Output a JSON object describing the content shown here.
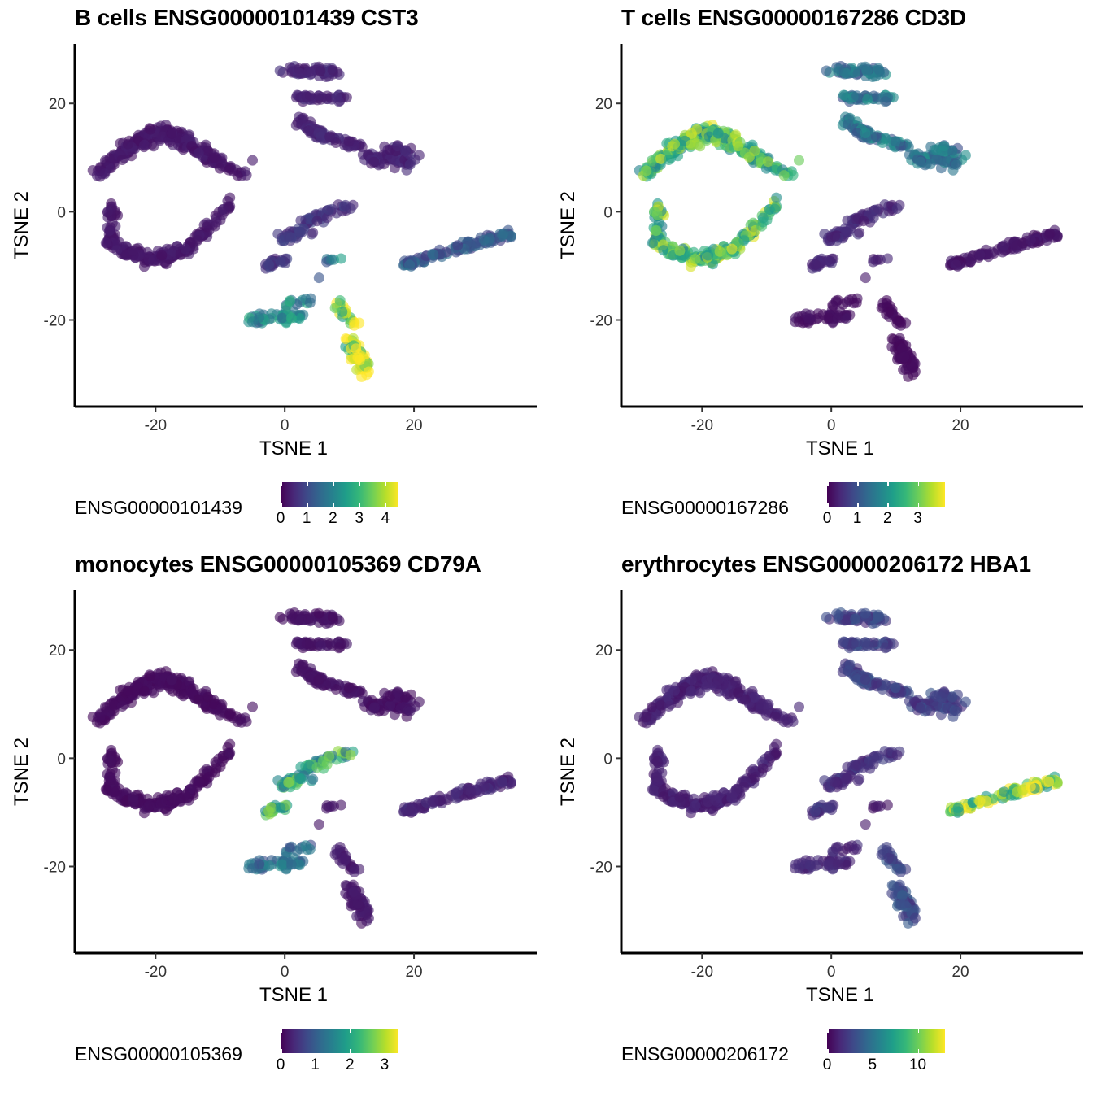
{
  "x_ticks": [
    -20,
    0,
    20
  ],
  "y_ticks": [
    20,
    0,
    -20
  ],
  "axis_limits": {
    "x": [
      -32.5,
      39
    ],
    "y": [
      -36,
      31
    ]
  },
  "palette": [
    "#440154",
    "#482878",
    "#3e4989",
    "#31688e",
    "#26828e",
    "#1f9e89",
    "#35b779",
    "#6ece58",
    "#b5de2b",
    "#fde725"
  ],
  "chart_data": [
    {
      "type": "scatter",
      "title": "B cells ENSG00000101439 CST3",
      "xlabel": "TSNE 1",
      "ylabel": "TSNE 2",
      "legend": {
        "title": "ENSG00000101439",
        "max": 4.5,
        "ticks": [
          0,
          1,
          2,
          3,
          4
        ]
      },
      "cluster_levels": {
        "A": 0.25,
        "B": 0.4,
        "C": 0.6,
        "D": 1.1,
        "E": 1.8,
        "F": 3.6,
        "G": 1.6
      }
    },
    {
      "type": "scatter",
      "title": "T cells ENSG00000167286 CD3D",
      "xlabel": "TSNE 1",
      "ylabel": "TSNE 2",
      "legend": {
        "title": "ENSG00000167286",
        "max": 3.9,
        "ticks": [
          0,
          1,
          2,
          3
        ]
      },
      "cluster_levels": {
        "A": 2.4,
        "B": 1.3,
        "C": 0.4,
        "D": 0.2,
        "E": 0.15,
        "F": 0.1,
        "G": 0.3
      }
    },
    {
      "type": "scatter",
      "title": "monocytes ENSG00000105369 CD79A",
      "xlabel": "TSNE 1",
      "ylabel": "TSNE 2",
      "legend": {
        "title": "ENSG00000105369",
        "max": 3.4,
        "ticks": [
          0,
          1,
          2,
          3
        ]
      },
      "cluster_levels": {
        "A": 0.1,
        "B": 0.15,
        "C": 1.8,
        "D": 0.3,
        "E": 1.1,
        "F": 0.2,
        "G": 0.2
      }
    },
    {
      "type": "scatter",
      "title": "erythrocytes ENSG00000206172 HBA1",
      "xlabel": "TSNE 1",
      "ylabel": "TSNE 2",
      "legend": {
        "title": "ENSG00000206172",
        "max": 13,
        "ticks": [
          0,
          5,
          10
        ]
      },
      "cluster_levels": {
        "A": 1.0,
        "B": 2.2,
        "C": 1.6,
        "D": 9.5,
        "E": 1.2,
        "F": 2.6,
        "G": 0.8
      }
    }
  ]
}
